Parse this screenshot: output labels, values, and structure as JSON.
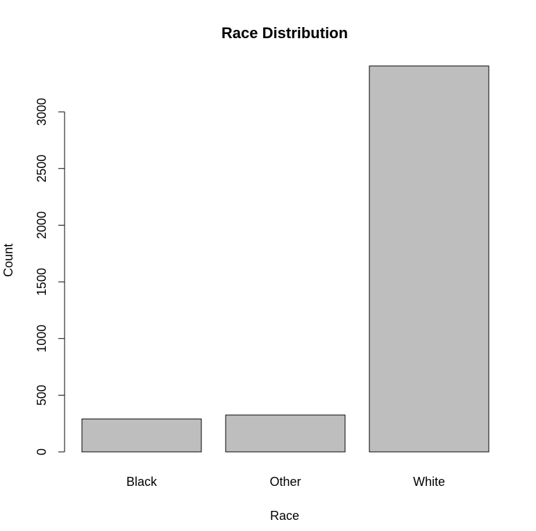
{
  "chart_data": {
    "type": "bar",
    "title": "Race Distribution",
    "xlabel": "Race",
    "ylabel": "Count",
    "categories": [
      "Black",
      "Other",
      "White"
    ],
    "values": [
      290,
      325,
      3405
    ],
    "ylim": [
      0,
      3405
    ],
    "yticks": [
      0,
      500,
      1000,
      1500,
      2000,
      2500,
      3000
    ],
    "grid": false,
    "legend": "none",
    "bar_color": "#bebebe",
    "bar_border_color": "#000000"
  }
}
